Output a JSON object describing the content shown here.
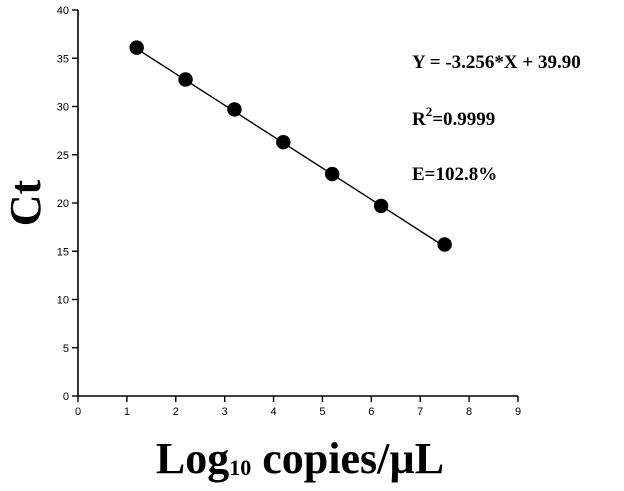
{
  "chart_data": {
    "type": "scatter",
    "title": "",
    "xlabel": {
      "main": "Log",
      "sub": "10",
      "rest": " copies/µL"
    },
    "ylabel": "Ct",
    "xlim": [
      0,
      9
    ],
    "ylim": [
      0,
      40
    ],
    "x_ticks": [
      "0",
      "1",
      "2",
      "3",
      "4",
      "5",
      "6",
      "7",
      "8",
      "9"
    ],
    "y_ticks": [
      "0",
      "5",
      "10",
      "15",
      "20",
      "25",
      "30",
      "35",
      "40"
    ],
    "grid": false,
    "legend": "none",
    "series": [
      {
        "x": [
          1.2,
          2.2,
          3.2,
          4.2,
          5.2,
          6.2,
          7.5
        ],
        "y": [
          36.1,
          32.8,
          29.7,
          26.3,
          23.0,
          19.7,
          15.7
        ]
      }
    ],
    "fit_line": {
      "slope": -3.256,
      "intercept": 39.9,
      "x_range": [
        1.2,
        7.5
      ]
    },
    "annotations": {
      "equation": "Y = -3.256*X + 39.90",
      "r2_prefix": "R",
      "r2_sup": "2",
      "r2_value": "=0.9999",
      "efficiency": "E=102.8%"
    },
    "colors": {
      "marker": "#000000",
      "line": "#000000",
      "axis": "#000000"
    }
  }
}
